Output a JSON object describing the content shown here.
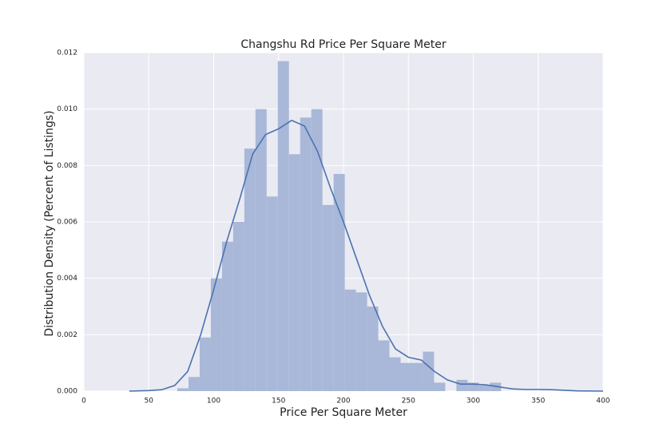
{
  "chart_data": {
    "type": "histogram",
    "title": "Changshu Rd Price Per Square Meter",
    "x_label": "Price Per Square Meter",
    "y_label": "Distribution Density (Percent of Listings)",
    "bins": [
      72,
      80.6,
      89.2,
      97.8,
      106.4,
      115,
      123.6,
      132.2,
      140.8,
      149.4,
      158,
      166.6,
      175.2,
      183.8,
      192.4,
      201,
      209.6,
      218.2,
      226.8,
      235.4,
      244,
      252.6,
      261.2,
      269.8,
      278.4,
      287,
      295.6,
      304.2,
      312.8,
      321.4
    ],
    "counts": [
      0.0001,
      0.0005,
      0.0019,
      0.004,
      0.0053,
      0.006,
      0.0086,
      0.01,
      0.0069,
      0.0117,
      0.0084,
      0.0097,
      0.01,
      0.0066,
      0.0077,
      0.0036,
      0.0035,
      0.003,
      0.0018,
      0.0012,
      0.001,
      0.001,
      0.0014,
      0.0003,
      0,
      0.0004,
      0.0003,
      0.0002,
      0.0003
    ],
    "color": "#a9b8d8",
    "kde": {
      "x": [
        35,
        50,
        60,
        70,
        80,
        90,
        100,
        110,
        120,
        130,
        140,
        150,
        160,
        170,
        180,
        190,
        200,
        210,
        220,
        230,
        240,
        250,
        260,
        270,
        280,
        290,
        300,
        310,
        320,
        330,
        340,
        350,
        360,
        370,
        380,
        400
      ],
      "values": [
        0,
        2e-05,
        5e-05,
        0.0002,
        0.0007,
        0.002,
        0.0036,
        0.0053,
        0.0068,
        0.0084,
        0.0091,
        0.0093,
        0.0096,
        0.0094,
        0.0085,
        0.0072,
        0.006,
        0.0047,
        0.0034,
        0.0023,
        0.0015,
        0.0012,
        0.0011,
        0.0007,
        0.0004,
        0.00025,
        0.00025,
        0.00022,
        0.00015,
        8e-05,
        6e-05,
        6e-05,
        5e-05,
        3e-05,
        1e-05,
        0
      ],
      "color": "#4c72b0"
    },
    "xlim": [
      0,
      400
    ],
    "xticks": [
      0,
      50,
      100,
      150,
      200,
      250,
      300,
      350,
      400
    ],
    "ylim": [
      0,
      0.012
    ],
    "yticks": [
      {
        "value": 0,
        "label": "0.000"
      },
      {
        "value": 0.002,
        "label": "0.002"
      },
      {
        "value": 0.004,
        "label": "0.004"
      },
      {
        "value": 0.006,
        "label": "0.006"
      },
      {
        "value": 0.008,
        "label": "0.008"
      },
      {
        "value": 0.01,
        "label": "0.010"
      },
      {
        "value": 0.012,
        "label": "0.012"
      }
    ],
    "grid": true
  }
}
